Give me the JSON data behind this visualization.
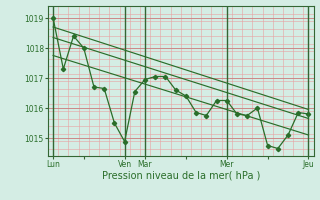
{
  "background_color": "#d4ede4",
  "grid_minor_color": "#e8a0a0",
  "grid_major_h_color": "#cc8888",
  "grid_major_v_color": "#336633",
  "line_color": "#2a6e2a",
  "axis_color": "#336633",
  "text_color": "#2a6e2a",
  "xlabel": "Pression niveau de la mer( hPa )",
  "yticks": [
    1015,
    1016,
    1017,
    1018,
    1019
  ],
  "ylim": [
    1014.4,
    1019.4
  ],
  "xlim": [
    -0.5,
    25.5
  ],
  "xtick_labels": [
    "Lun",
    "",
    "Ven",
    "Mar",
    "",
    "Mer",
    "",
    "Jeu"
  ],
  "xtick_positions": [
    0,
    3,
    7,
    9,
    13,
    17,
    21,
    25
  ],
  "major_v_positions": [
    0,
    7,
    9,
    17,
    25
  ],
  "series1_x": [
    0,
    1,
    2,
    3,
    4,
    5,
    6,
    7,
    8,
    9,
    10,
    11,
    12,
    13,
    14,
    15,
    16,
    17,
    18,
    19,
    20,
    21,
    22,
    23,
    24,
    25
  ],
  "series1_y": [
    1019.0,
    1017.3,
    1018.4,
    1018.0,
    1016.7,
    1016.65,
    1015.5,
    1014.88,
    1016.55,
    1016.95,
    1017.05,
    1017.05,
    1016.6,
    1016.4,
    1015.85,
    1015.75,
    1016.25,
    1016.25,
    1015.8,
    1015.75,
    1016.0,
    1014.75,
    1014.65,
    1015.1,
    1015.85,
    1015.8
  ],
  "trend1_x": [
    0,
    25
  ],
  "trend1_y": [
    1018.7,
    1015.95
  ],
  "trend2_x": [
    0,
    25
  ],
  "trend2_y": [
    1018.35,
    1015.65
  ],
  "trend3_x": [
    0,
    25
  ],
  "trend3_y": [
    1017.75,
    1015.1
  ]
}
